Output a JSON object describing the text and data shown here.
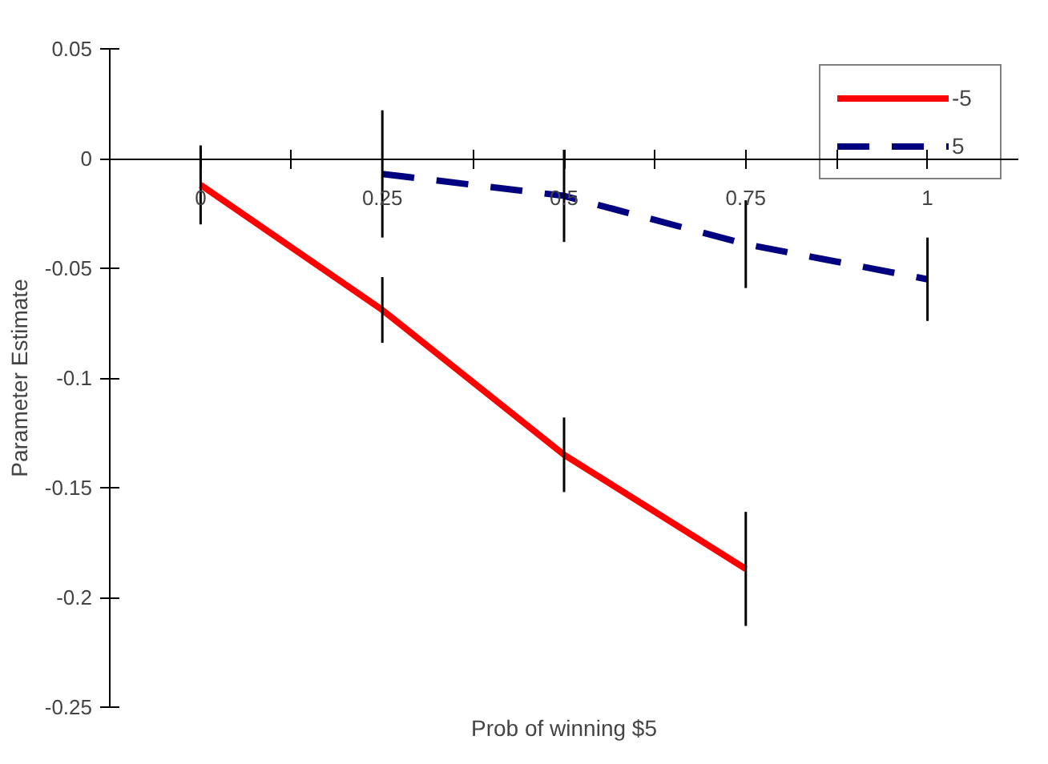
{
  "chart_data": {
    "type": "line",
    "xlabel": "Prob of winning $5",
    "ylabel": "Parameter Estimate",
    "x": [
      0,
      0.25,
      0.5,
      0.75,
      1
    ],
    "series": [
      {
        "name": "-5",
        "color": "#ff0000",
        "line_style": "solid",
        "values": [
          -0.012,
          -0.069,
          -0.135,
          -0.187,
          null
        ],
        "errors": [
          0.018,
          0.015,
          0.017,
          0.026,
          null
        ]
      },
      {
        "name": "5",
        "color": "#000080",
        "line_style": "dashed",
        "values": [
          null,
          -0.007,
          -0.017,
          -0.039,
          -0.055
        ],
        "errors": [
          null,
          0.029,
          0.021,
          0.02,
          0.019
        ]
      }
    ],
    "xlim": [
      -0.125,
      1.125
    ],
    "ylim": [
      -0.25,
      0.05
    ],
    "xticks": [
      0,
      {
        "value": 0.125,
        "label": null
      },
      0.25,
      {
        "value": 0.375,
        "label": null
      },
      0.5,
      {
        "value": 0.625,
        "label": null
      },
      0.75,
      {
        "value": 0.875,
        "label": null
      },
      1
    ],
    "yticks": [
      -0.25,
      -0.2,
      -0.15,
      -0.1,
      -0.05,
      0,
      0.05
    ],
    "legend": "top right",
    "marker": "none"
  }
}
